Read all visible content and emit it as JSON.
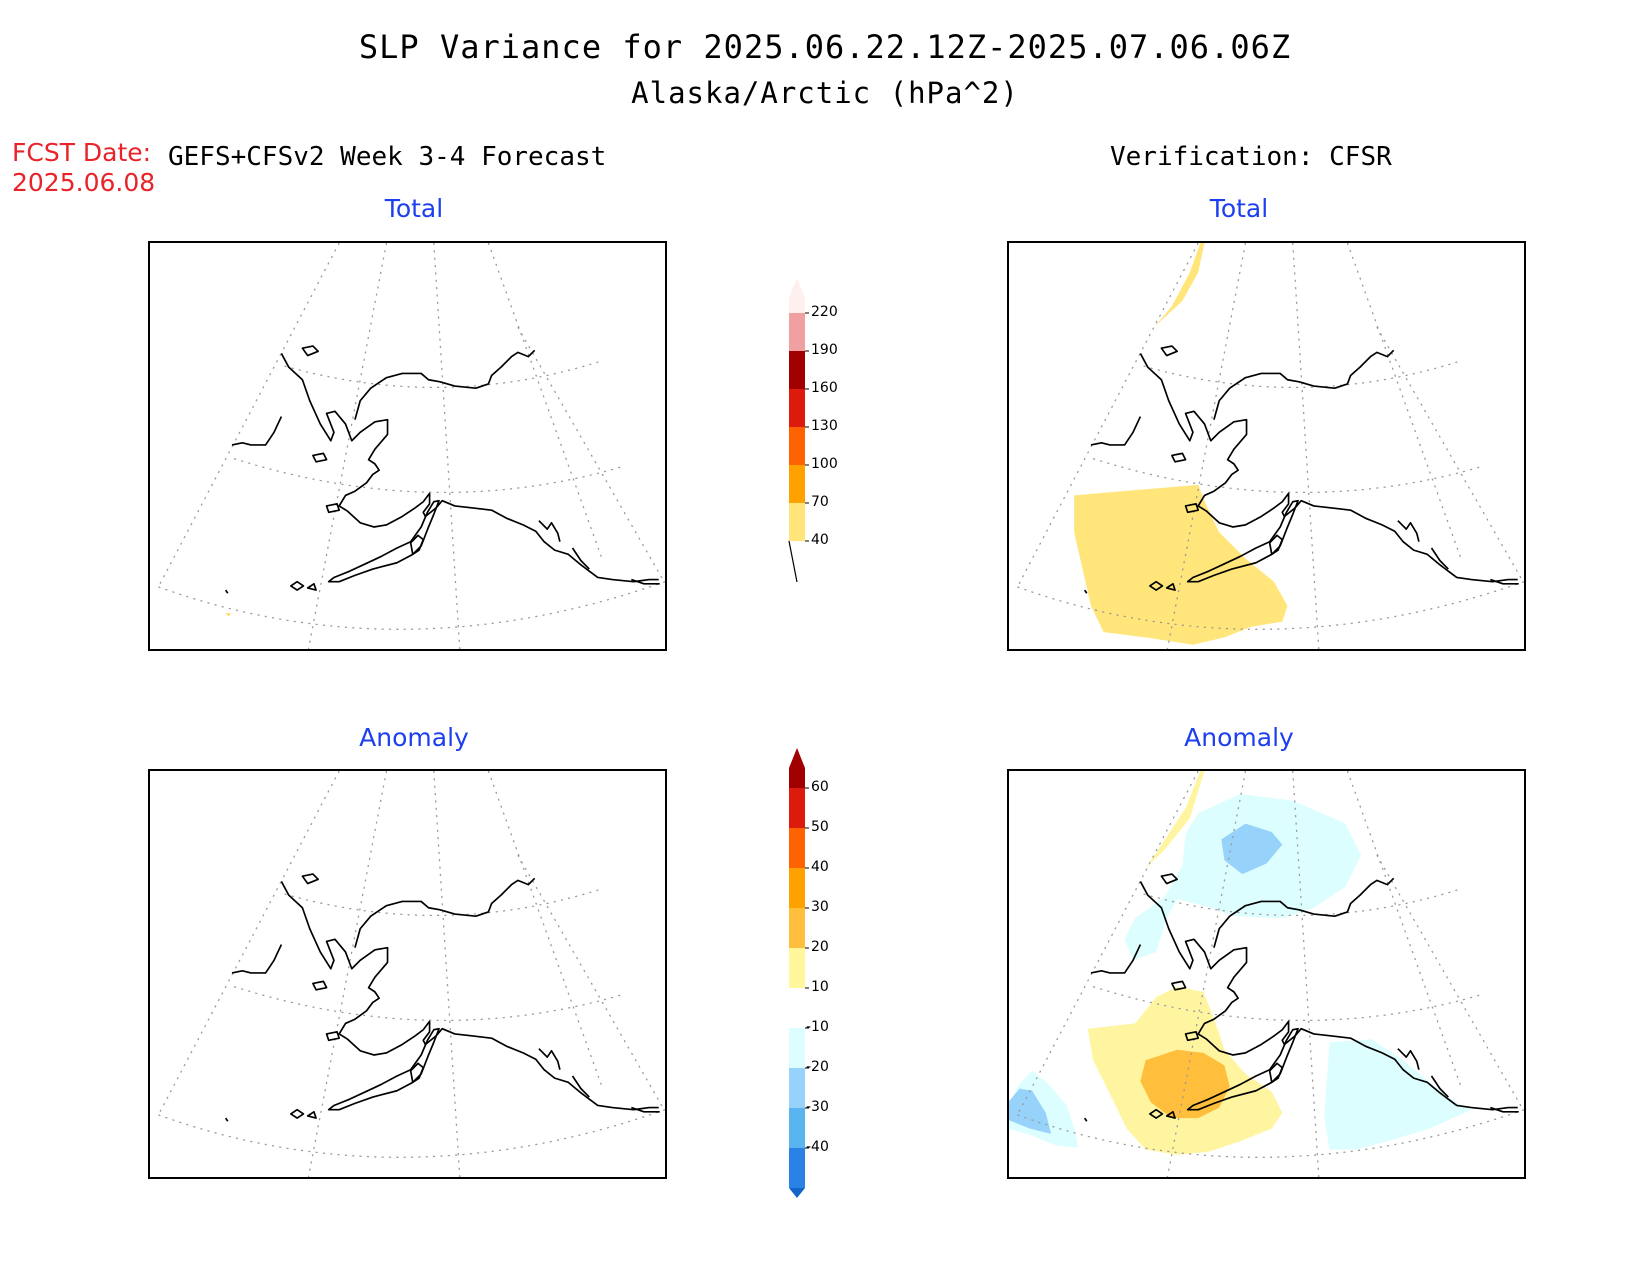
{
  "title": "SLP Variance for 2025.06.22.12Z-2025.07.06.06Z",
  "subtitle": "Alaska/Arctic (hPa^2)",
  "fcst_date_label": "FCST Date:",
  "fcst_date_value": "2025.06.08",
  "left_header": "GEFS+CFSv2 Week 3-4 Forecast",
  "right_header": "Verification: CFSR",
  "panels": {
    "forecast_total": "Total",
    "verification_total": "Total",
    "forecast_anomaly": "Anomaly",
    "verification_anomaly": "Anomaly"
  },
  "colorbar_total": {
    "labels": [
      "220",
      "190",
      "160",
      "130",
      "100",
      "70",
      "40"
    ],
    "colors": [
      "#fdf0ee",
      "#f0a0a0",
      "#a00000",
      "#dd1b0d",
      "#ff6200",
      "#ffa200",
      "#ffe57a"
    ]
  },
  "colorbar_anomaly": {
    "labels": [
      "60",
      "50",
      "40",
      "30",
      "20",
      "10",
      "-10",
      "-20",
      "-30",
      "-40"
    ],
    "colors": [
      "#a00000",
      "#dd1b0d",
      "#ff6200",
      "#ffa200",
      "#ffbe3c",
      "#fff79a",
      "#ffffff",
      "#dcfefe",
      "#96d2fa",
      "#5ab4f0",
      "#2b82e6",
      "#1564c8"
    ]
  },
  "legend_colors": {
    "light_yellow": "#ffe57a",
    "pale_yellow": "#fff5a0",
    "orange": "#ffbe3c",
    "pale_cyan": "#dcfefe",
    "light_blue": "#96d2fa"
  }
}
